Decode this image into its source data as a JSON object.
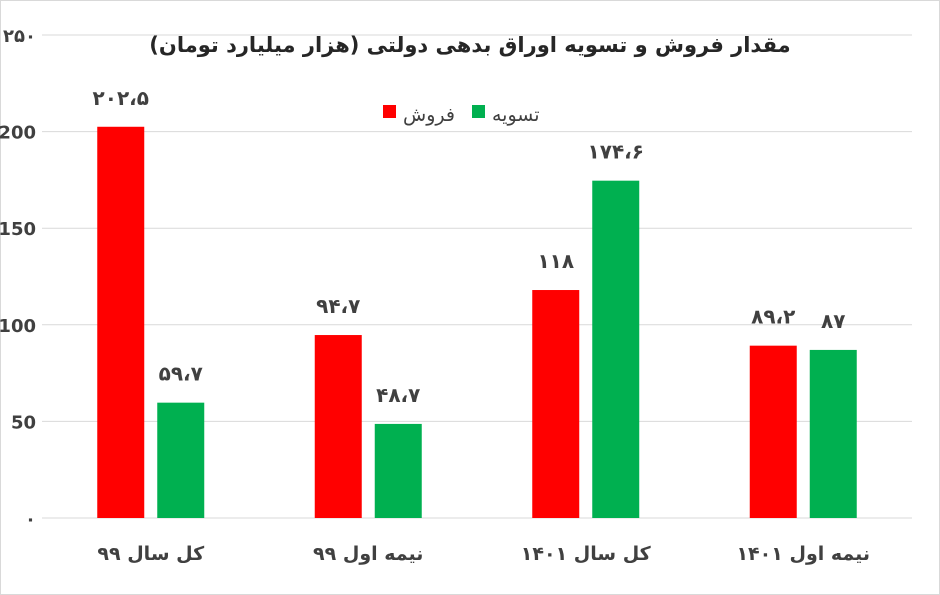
{
  "chart_data": {
    "type": "bar",
    "title": "مقدار فروش و تسویه اوراق بدهی دولتی (هزار میلیارد تومان)",
    "categories": [
      "کل سال ۹۹",
      "نیمه اول ۹۹",
      "کل سال ۱۴۰۱",
      "نیمه اول ۱۴۰۱"
    ],
    "series": [
      {
        "name": "فروش",
        "color": "#ff0000",
        "values": [
          202.5,
          94.7,
          118,
          89.2
        ],
        "labels": [
          "۲۰۲،۵",
          "۹۴،۷",
          "۱۱۸",
          "۸۹،۲"
        ]
      },
      {
        "name": "تسویه",
        "color": "#00b050",
        "values": [
          59.7,
          48.7,
          174.6,
          87
        ],
        "labels": [
          "۵۹،۷",
          "۴۸،۷",
          "۱۷۴،۶",
          "۸۷"
        ]
      }
    ],
    "yticks": [
      0,
      50,
      100,
      150,
      200,
      250
    ],
    "ytick_labels": [
      "۰",
      "50",
      "100",
      "150",
      "200",
      "۲۵۰"
    ],
    "ylim": [
      0,
      250
    ],
    "grid": true,
    "legend_position": "top-center"
  }
}
